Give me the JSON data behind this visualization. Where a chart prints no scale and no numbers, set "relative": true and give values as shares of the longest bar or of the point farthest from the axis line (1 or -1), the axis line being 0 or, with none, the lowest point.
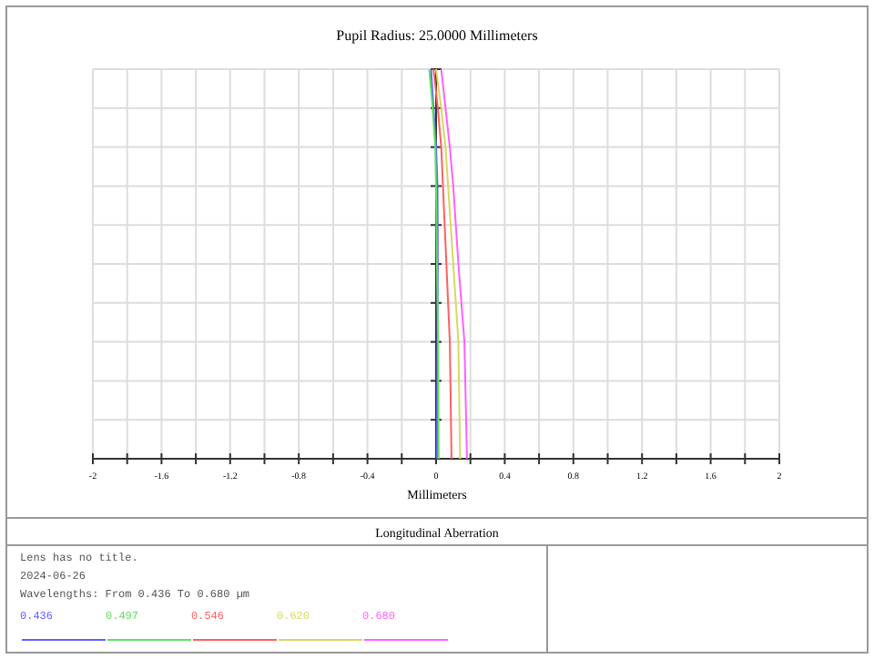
{
  "chart_data": {
    "type": "line",
    "title": "Pupil Radius: 25.0000 Millimeters",
    "xlabel": "Millimeters",
    "annotations": [
      "Longitudinal Aberration",
      "Lens has no title.",
      "2024-06-26",
      "Wavelengths: From 0.436 To 0.680 µm"
    ],
    "xlim": [
      -2,
      2
    ],
    "xticks": [
      -2,
      {
        "value": -1.8,
        "label": null
      },
      -1.6,
      {
        "value": -1.4,
        "label": null
      },
      -1.2,
      {
        "value": -1,
        "label": null
      },
      -0.8,
      {
        "value": -0.6,
        "label": null
      },
      -0.4,
      {
        "value": -0.2,
        "label": null
      },
      0,
      {
        "value": 0.2,
        "label": null
      },
      0.4,
      {
        "value": 0.6,
        "label": null
      },
      0.8,
      {
        "value": 1,
        "label": null
      },
      1.2,
      {
        "value": 1.4,
        "label": null
      },
      1.6,
      {
        "value": 1.8,
        "label": null
      },
      2
    ],
    "relative": true,
    "tick_labels": "x",
    "grid": true,
    "legend": "bottom",
    "line_style": "solid",
    "marker": "none",
    "series": [
      {
        "name": "0.436",
        "color": "#6060ff",
        "x": [
          0.005,
          0.008,
          0.01,
          0.008,
          0,
          -0.015,
          -0.03
        ],
        "values": [
          0,
          0.3,
          0.5,
          0.7,
          0.8,
          0.9,
          1
        ]
      },
      {
        "name": "0.497",
        "color": "#60e060",
        "x": [
          0.015,
          0.012,
          0.005,
          0,
          -0.005,
          -0.02,
          -0.04
        ],
        "values": [
          0,
          0.3,
          0.5,
          0.7,
          0.8,
          0.9,
          1
        ]
      },
      {
        "name": "0.546",
        "color": "#ff6060",
        "x": [
          0.09,
          0.08,
          0.06,
          0.04,
          0.03,
          0.01,
          -0.015
        ],
        "values": [
          0,
          0.3,
          0.5,
          0.7,
          0.8,
          0.9,
          1
        ]
      },
      {
        "name": "0.620",
        "color": "#d8d860",
        "x": [
          0.14,
          0.13,
          0.1,
          0.07,
          0.055,
          0.03,
          0
        ],
        "values": [
          0,
          0.3,
          0.5,
          0.7,
          0.8,
          0.9,
          1
        ]
      },
      {
        "name": "0.680",
        "color": "#ff60ff",
        "x": [
          0.18,
          0.165,
          0.13,
          0.1,
          0.08,
          0.055,
          0.03
        ],
        "values": [
          0,
          0.3,
          0.5,
          0.7,
          0.8,
          0.9,
          1
        ]
      }
    ]
  }
}
